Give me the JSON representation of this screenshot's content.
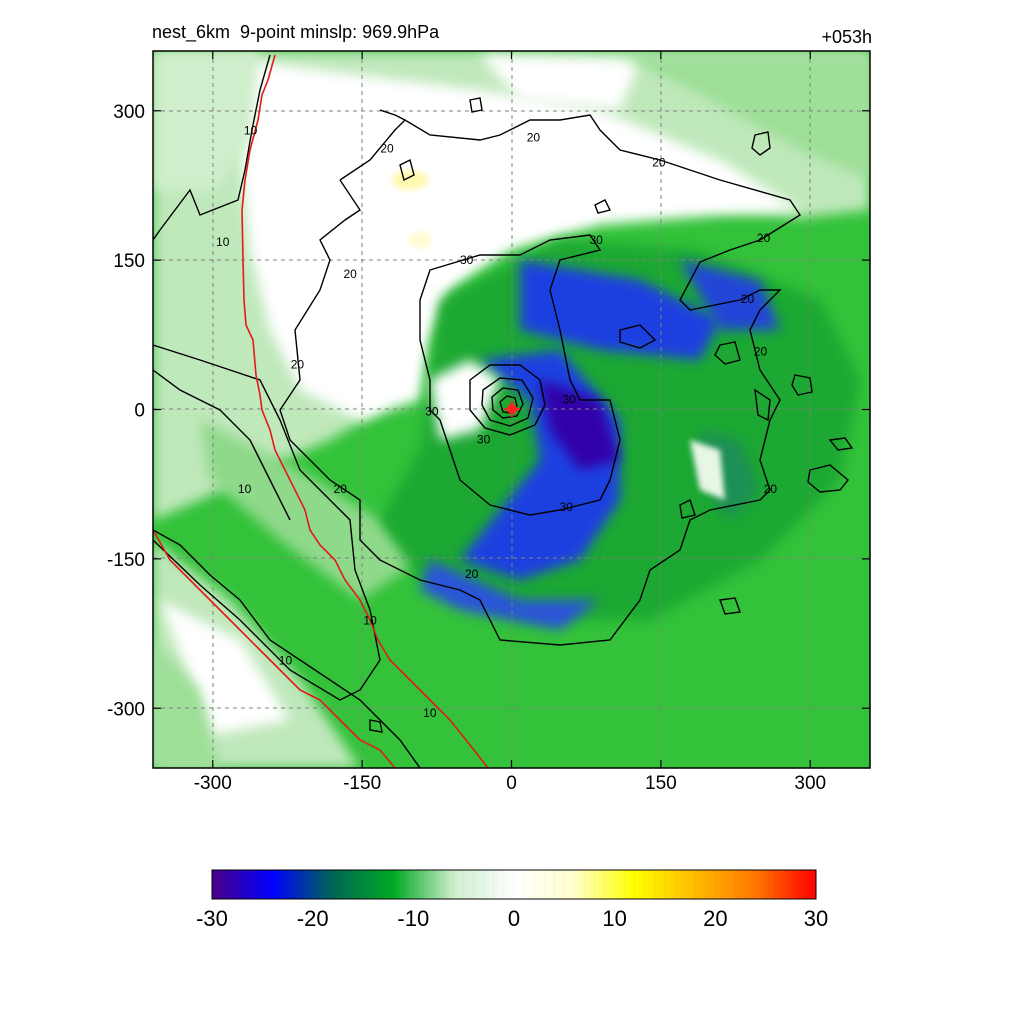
{
  "header": {
    "title_left": "nest_6km  9-point minslp: 969.9hPa",
    "title_right": "+053h"
  },
  "chart_data": {
    "type": "heatmap",
    "xlim": [
      -360,
      360
    ],
    "ylim": [
      -360,
      360
    ],
    "xticks": [
      -300,
      -150,
      0,
      150,
      300
    ],
    "yticks": [
      -300,
      -150,
      0,
      150,
      300
    ],
    "grid": "dashed",
    "storm_center": [
      0,
      0
    ],
    "contour_levels": [
      10,
      20,
      30
    ],
    "contour_labels": [
      {
        "text": "10",
        "x": -262,
        "y": 280
      },
      {
        "text": "10",
        "x": -290,
        "y": 168
      },
      {
        "text": "20",
        "x": -125,
        "y": 262
      },
      {
        "text": "20",
        "x": 22,
        "y": 273
      },
      {
        "text": "20",
        "x": 148,
        "y": 248
      },
      {
        "text": "20",
        "x": 253,
        "y": 172
      },
      {
        "text": "20",
        "x": -162,
        "y": 136
      },
      {
        "text": "30",
        "x": -45,
        "y": 150
      },
      {
        "text": "30",
        "x": 85,
        "y": 170
      },
      {
        "text": "20",
        "x": 237,
        "y": 111
      },
      {
        "text": "20",
        "x": 250,
        "y": 58
      },
      {
        "text": "20",
        "x": -215,
        "y": 45
      },
      {
        "text": "30",
        "x": -80,
        "y": -2
      },
      {
        "text": "30",
        "x": -28,
        "y": -30
      },
      {
        "text": "30",
        "x": 58,
        "y": 10
      },
      {
        "text": "30",
        "x": 55,
        "y": -98
      },
      {
        "text": "10",
        "x": -268,
        "y": -80
      },
      {
        "text": "20",
        "x": -172,
        "y": -80
      },
      {
        "text": "20",
        "x": 260,
        "y": -80
      },
      {
        "text": "20",
        "x": -40,
        "y": -165
      },
      {
        "text": "10",
        "x": -142,
        "y": -212
      },
      {
        "text": "10",
        "x": -227,
        "y": -252
      },
      {
        "text": "10",
        "x": -82,
        "y": -305
      }
    ],
    "colorbar": {
      "min": -30,
      "max": 30,
      "ticks": [
        -30,
        -20,
        -10,
        0,
        10,
        20,
        30
      ],
      "colors": [
        "#4b0088",
        "#0000ff",
        "#006655",
        "#00aa22",
        "#cdeecd",
        "#ffffff",
        "#ffffcc",
        "#ffff00",
        "#ffbb00",
        "#ff7700",
        "#ff0000"
      ]
    }
  }
}
